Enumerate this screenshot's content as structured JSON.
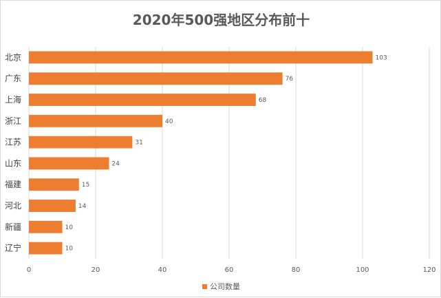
{
  "chart_data": {
    "type": "bar",
    "orientation": "horizontal",
    "title": "2020年500强地区分布前十",
    "categories": [
      "北京",
      "广东",
      "上海",
      "浙江",
      "江苏",
      "山东",
      "福建",
      "河北",
      "新疆",
      "辽宁"
    ],
    "series": [
      {
        "name": "公司数量",
        "values": [
          103,
          76,
          68,
          40,
          31,
          24,
          15,
          14,
          10,
          10
        ]
      }
    ],
    "xlim": [
      0,
      120
    ],
    "xticks": [
      0,
      20,
      40,
      60,
      80,
      100,
      120
    ],
    "grid": "vertical",
    "legend_position": "bottom",
    "data_labels": true,
    "colors": {
      "bar": "#ED7D31",
      "grid": "#d9d9d9",
      "text": "#595959"
    }
  }
}
